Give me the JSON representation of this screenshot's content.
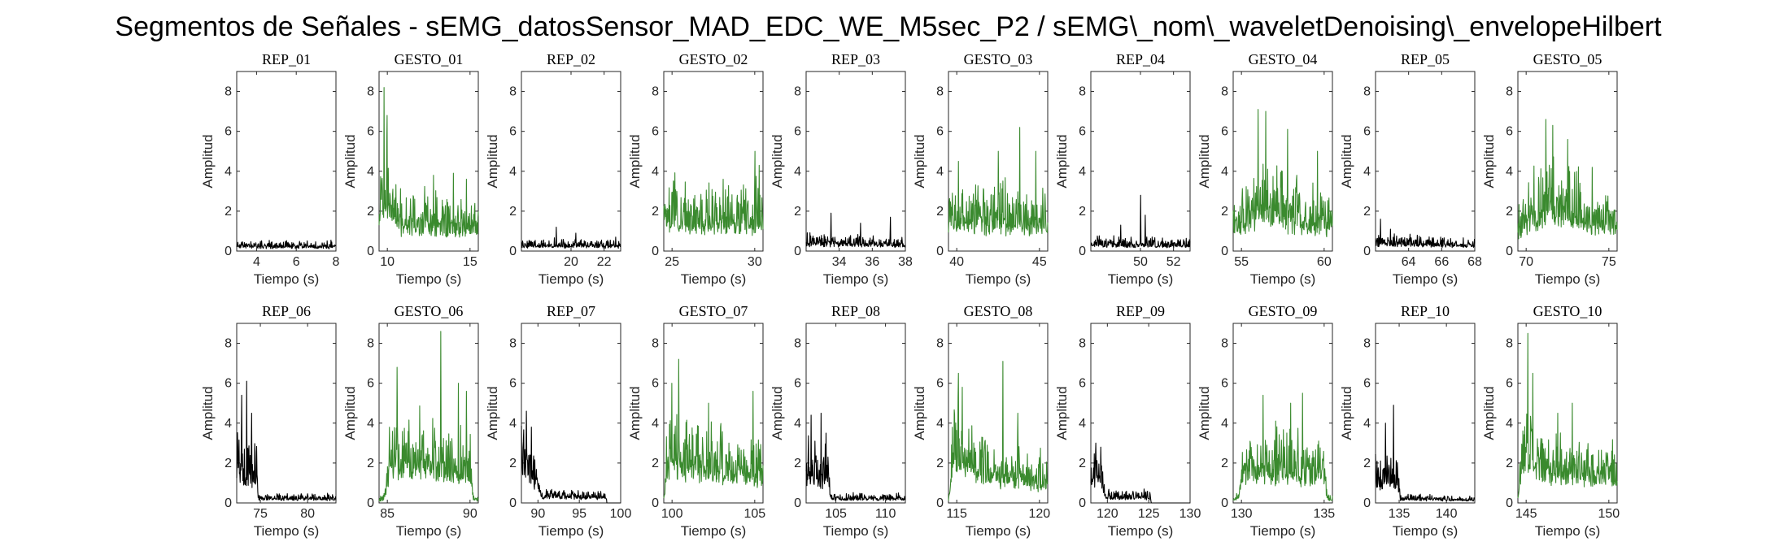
{
  "figure_title": "Segmentos de Señales - sEMG_datosSensor_MAD_EDC_WE_M5sec_P2 / sEMG\\_nom\\_waveletDenoising\\_envelopeHilbert",
  "colors": {
    "rep": "#000000",
    "gesto": "#3a8a2e"
  },
  "chart_data": [
    {
      "type": "line",
      "title": "REP_01",
      "xlabel": "Tiempo (s)",
      "ylabel": "Amplitud",
      "xlim": [
        3,
        8
      ],
      "ylim": [
        0,
        9
      ],
      "xticks": [
        4,
        6,
        8
      ],
      "yticks": [
        0,
        2,
        4,
        6,
        8
      ],
      "kind": "rep",
      "seed": 11,
      "profile": [
        [
          0,
          0.35
        ],
        [
          1,
          0.3
        ]
      ],
      "peaks": [
        [
          0.95,
          0.55
        ]
      ]
    },
    {
      "type": "line",
      "title": "GESTO_01",
      "xlabel": "Tiempo (s)",
      "ylabel": "Amplitud",
      "xlim": [
        9.5,
        15.5
      ],
      "ylim": [
        0,
        9
      ],
      "xticks": [
        10,
        15
      ],
      "yticks": [
        0,
        2,
        4,
        6,
        8
      ],
      "kind": "gesto",
      "seed": 12,
      "profile": [
        [
          0,
          2.5
        ],
        [
          0.08,
          3.8
        ],
        [
          0.2,
          2.0
        ],
        [
          1,
          1.5
        ]
      ],
      "peaks": [
        [
          0.05,
          8.2
        ],
        [
          0.08,
          6.8
        ],
        [
          0.55,
          3.8
        ],
        [
          0.75,
          3.9
        ],
        [
          0.88,
          3.6
        ]
      ]
    },
    {
      "type": "line",
      "title": "REP_02",
      "xlabel": "Tiempo (s)",
      "ylabel": "Amplitud",
      "xlim": [
        17,
        23
      ],
      "ylim": [
        0,
        9
      ],
      "xticks": [
        20,
        22
      ],
      "yticks": [
        0,
        2,
        4,
        6,
        8
      ],
      "kind": "rep",
      "seed": 13,
      "profile": [
        [
          0,
          0.4
        ],
        [
          1,
          0.35
        ]
      ],
      "peaks": [
        [
          0.35,
          1.2
        ],
        [
          0.55,
          0.9
        ],
        [
          0.95,
          0.7
        ]
      ]
    },
    {
      "type": "line",
      "title": "GESTO_02",
      "xlabel": "Tiempo (s)",
      "ylabel": "Amplitud",
      "xlim": [
        24.5,
        30.5
      ],
      "ylim": [
        0,
        9
      ],
      "xticks": [
        25,
        30
      ],
      "yticks": [
        0,
        2,
        4,
        6,
        8
      ],
      "kind": "gesto",
      "seed": 14,
      "profile": [
        [
          0,
          2.5
        ],
        [
          0.3,
          2.0
        ],
        [
          1,
          2.2
        ]
      ],
      "peaks": [
        [
          0.1,
          3.5
        ],
        [
          0.6,
          3.6
        ],
        [
          0.92,
          5.0
        ],
        [
          0.96,
          4.3
        ]
      ]
    },
    {
      "type": "line",
      "title": "REP_03",
      "xlabel": "Tiempo (s)",
      "ylabel": "Amplitud",
      "xlim": [
        32,
        38
      ],
      "ylim": [
        0,
        9
      ],
      "xticks": [
        34,
        36,
        38
      ],
      "yticks": [
        0,
        2,
        4,
        6,
        8
      ],
      "kind": "rep",
      "seed": 15,
      "profile": [
        [
          0,
          0.6
        ],
        [
          1,
          0.45
        ]
      ],
      "peaks": [
        [
          0.25,
          1.9
        ],
        [
          0.55,
          1.4
        ],
        [
          0.85,
          1.7
        ]
      ]
    },
    {
      "type": "line",
      "title": "GESTO_03",
      "xlabel": "Tiempo (s)",
      "ylabel": "Amplitud",
      "xlim": [
        39.5,
        45.5
      ],
      "ylim": [
        0,
        9
      ],
      "xticks": [
        40,
        45
      ],
      "yticks": [
        0,
        2,
        4,
        6,
        8
      ],
      "kind": "gesto",
      "seed": 16,
      "profile": [
        [
          0,
          2.2
        ],
        [
          1,
          2.0
        ]
      ],
      "peaks": [
        [
          0.1,
          4.5
        ],
        [
          0.5,
          5.0
        ],
        [
          0.72,
          6.2
        ],
        [
          0.88,
          5.0
        ]
      ]
    },
    {
      "type": "line",
      "title": "REP_04",
      "xlabel": "Tiempo (s)",
      "ylabel": "Amplitud",
      "xlim": [
        47,
        53
      ],
      "ylim": [
        0,
        9
      ],
      "xticks": [
        50,
        52
      ],
      "yticks": [
        0,
        2,
        4,
        6,
        8
      ],
      "kind": "rep",
      "seed": 17,
      "profile": [
        [
          0,
          0.5
        ],
        [
          1,
          0.4
        ]
      ],
      "peaks": [
        [
          0.3,
          1.3
        ],
        [
          0.5,
          2.8
        ],
        [
          0.55,
          1.8
        ]
      ]
    },
    {
      "type": "line",
      "title": "GESTO_04",
      "xlabel": "Tiempo (s)",
      "ylabel": "Amplitud",
      "xlim": [
        54.5,
        60.5
      ],
      "ylim": [
        0,
        9
      ],
      "xticks": [
        55,
        60
      ],
      "yticks": [
        0,
        2,
        4,
        6,
        8
      ],
      "kind": "gesto",
      "seed": 18,
      "profile": [
        [
          0,
          1.5
        ],
        [
          0.25,
          3.0
        ],
        [
          0.6,
          2.2
        ],
        [
          1,
          1.8
        ]
      ],
      "peaks": [
        [
          0.25,
          7.1
        ],
        [
          0.33,
          7.0
        ],
        [
          0.55,
          6.1
        ],
        [
          0.85,
          5.0
        ]
      ]
    },
    {
      "type": "line",
      "title": "REP_05",
      "xlabel": "Tiempo (s)",
      "ylabel": "Amplitud",
      "xlim": [
        62,
        68
      ],
      "ylim": [
        0,
        9
      ],
      "xticks": [
        64,
        66,
        68
      ],
      "yticks": [
        0,
        2,
        4,
        6,
        8
      ],
      "kind": "rep",
      "seed": 19,
      "profile": [
        [
          0,
          0.6
        ],
        [
          1,
          0.4
        ]
      ],
      "peaks": [
        [
          0.05,
          1.6
        ],
        [
          0.15,
          1.1
        ]
      ]
    },
    {
      "type": "line",
      "title": "GESTO_05",
      "xlabel": "Tiempo (s)",
      "ylabel": "Amplitud",
      "xlim": [
        69.5,
        75.5
      ],
      "ylim": [
        0,
        9
      ],
      "xticks": [
        70,
        75
      ],
      "yticks": [
        0,
        2,
        4,
        6,
        8
      ],
      "kind": "gesto",
      "seed": 20,
      "profile": [
        [
          0,
          1.5
        ],
        [
          0.3,
          3.2
        ],
        [
          0.7,
          2.2
        ],
        [
          1,
          1.8
        ]
      ],
      "peaks": [
        [
          0.28,
          6.6
        ],
        [
          0.35,
          6.3
        ],
        [
          0.5,
          5.6
        ],
        [
          0.75,
          4.2
        ]
      ]
    },
    {
      "type": "line",
      "title": "REP_06",
      "xlabel": "Tiempo (s)",
      "ylabel": "Amplitud",
      "xlim": [
        72.5,
        83
      ],
      "ylim": [
        0,
        9
      ],
      "xticks": [
        75,
        80
      ],
      "yticks": [
        0,
        2,
        4,
        6,
        8
      ],
      "kind": "rep",
      "seed": 21,
      "profile": [
        [
          0,
          2.5
        ],
        [
          0.2,
          2.0
        ],
        [
          0.22,
          0.3
        ],
        [
          1,
          0.3
        ]
      ],
      "peaks": [
        [
          0.05,
          5.4
        ],
        [
          0.1,
          6.1
        ],
        [
          0.15,
          4.5
        ]
      ]
    },
    {
      "type": "line",
      "title": "GESTO_06",
      "xlabel": "Tiempo (s)",
      "ylabel": "Amplitud",
      "xlim": [
        84.5,
        90.5
      ],
      "ylim": [
        0,
        9
      ],
      "xticks": [
        85,
        90
      ],
      "yticks": [
        0,
        2,
        4,
        6,
        8
      ],
      "kind": "gesto",
      "seed": 22,
      "profile": [
        [
          0,
          0.2
        ],
        [
          0.05,
          0.3
        ],
        [
          0.12,
          3.0
        ],
        [
          0.6,
          2.5
        ],
        [
          0.92,
          2.0
        ],
        [
          0.95,
          0.3
        ],
        [
          1,
          0.2
        ]
      ],
      "peaks": [
        [
          0.18,
          6.8
        ],
        [
          0.62,
          8.6
        ],
        [
          0.8,
          6.0
        ],
        [
          0.88,
          5.6
        ]
      ]
    },
    {
      "type": "line",
      "title": "REP_07",
      "xlabel": "Tiempo (s)",
      "ylabel": "Amplitud",
      "xlim": [
        88,
        100
      ],
      "ylim": [
        0,
        9
      ],
      "xticks": [
        90,
        95,
        100
      ],
      "yticks": [
        0,
        2,
        4,
        6,
        8
      ],
      "kind": "rep",
      "seed": 23,
      "profile": [
        [
          0,
          2.5
        ],
        [
          0.16,
          1.5
        ],
        [
          0.2,
          0.5
        ],
        [
          0.85,
          0.4
        ],
        [
          0.86,
          0
        ],
        [
          1,
          0
        ]
      ],
      "peaks": [
        [
          0.05,
          4.6
        ],
        [
          0.1,
          3.8
        ]
      ]
    },
    {
      "type": "line",
      "title": "GESTO_07",
      "xlabel": "Tiempo (s)",
      "ylabel": "Amplitud",
      "xlim": [
        99.5,
        105.5
      ],
      "ylim": [
        0,
        9
      ],
      "xticks": [
        100,
        105
      ],
      "yticks": [
        0,
        2,
        4,
        6,
        8
      ],
      "kind": "gesto",
      "seed": 24,
      "profile": [
        [
          0,
          0.2
        ],
        [
          0.04,
          3.0
        ],
        [
          0.4,
          2.5
        ],
        [
          1,
          2.0
        ]
      ],
      "peaks": [
        [
          0.08,
          6.0
        ],
        [
          0.15,
          7.2
        ],
        [
          0.45,
          5.0
        ],
        [
          0.9,
          5.6
        ]
      ]
    },
    {
      "type": "line",
      "title": "REP_08",
      "xlabel": "Tiempo (s)",
      "ylabel": "Amplitud",
      "xlim": [
        102,
        112
      ],
      "ylim": [
        0,
        9
      ],
      "xticks": [
        105,
        110
      ],
      "yticks": [
        0,
        2,
        4,
        6,
        8
      ],
      "kind": "rep",
      "seed": 25,
      "profile": [
        [
          0,
          2.2
        ],
        [
          0.22,
          1.8
        ],
        [
          0.25,
          0.3
        ],
        [
          1,
          0.3
        ]
      ],
      "peaks": [
        [
          0.05,
          4.4
        ],
        [
          0.15,
          4.5
        ],
        [
          0.2,
          3.5
        ]
      ]
    },
    {
      "type": "line",
      "title": "GESTO_08",
      "xlabel": "Tiempo (s)",
      "ylabel": "Amplitud",
      "xlim": [
        114.5,
        120.5
      ],
      "ylim": [
        0,
        9
      ],
      "xticks": [
        115,
        120
      ],
      "yticks": [
        0,
        2,
        4,
        6,
        8
      ],
      "kind": "gesto",
      "seed": 26,
      "profile": [
        [
          0,
          0.2
        ],
        [
          0.06,
          3.8
        ],
        [
          0.4,
          2.0
        ],
        [
          1,
          1.5
        ]
      ],
      "peaks": [
        [
          0.1,
          6.5
        ],
        [
          0.14,
          5.8
        ],
        [
          0.55,
          7.1
        ],
        [
          0.7,
          4.5
        ]
      ]
    },
    {
      "type": "line",
      "title": "REP_09",
      "xlabel": "Tiempo (s)",
      "ylabel": "Amplitud",
      "xlim": [
        118,
        130
      ],
      "ylim": [
        0,
        9
      ],
      "xticks": [
        120,
        125,
        130
      ],
      "yticks": [
        0,
        2,
        4,
        6,
        8
      ],
      "kind": "rep",
      "seed": 27,
      "profile": [
        [
          0,
          2.0
        ],
        [
          0.12,
          1.5
        ],
        [
          0.15,
          0.4
        ],
        [
          0.6,
          0.4
        ],
        [
          0.61,
          0
        ],
        [
          1,
          0
        ]
      ],
      "peaks": [
        [
          0.05,
          3.0
        ],
        [
          0.1,
          2.8
        ]
      ]
    },
    {
      "type": "line",
      "title": "GESTO_09",
      "xlabel": "Tiempo (s)",
      "ylabel": "Amplitud",
      "xlim": [
        129.5,
        135.5
      ],
      "ylim": [
        0,
        9
      ],
      "xticks": [
        130,
        135
      ],
      "yticks": [
        0,
        2,
        4,
        6,
        8
      ],
      "kind": "gesto",
      "seed": 28,
      "profile": [
        [
          0,
          0.2
        ],
        [
          0.05,
          0.4
        ],
        [
          0.1,
          2.5
        ],
        [
          0.6,
          2.2
        ],
        [
          0.92,
          2.0
        ],
        [
          0.95,
          0.3
        ],
        [
          1,
          0.2
        ]
      ],
      "peaks": [
        [
          0.3,
          5.4
        ],
        [
          0.58,
          5.0
        ],
        [
          0.7,
          5.5
        ]
      ]
    },
    {
      "type": "line",
      "title": "REP_10",
      "xlabel": "Tiempo (s)",
      "ylabel": "Amplitud",
      "xlim": [
        132.5,
        143
      ],
      "ylim": [
        0,
        9
      ],
      "xticks": [
        135,
        140
      ],
      "yticks": [
        0,
        2,
        4,
        6,
        8
      ],
      "kind": "rep",
      "seed": 29,
      "profile": [
        [
          0,
          1.8
        ],
        [
          0.22,
          1.5
        ],
        [
          0.25,
          0.3
        ],
        [
          1,
          0.2
        ]
      ],
      "peaks": [
        [
          0.1,
          4.0
        ],
        [
          0.18,
          4.9
        ]
      ]
    },
    {
      "type": "line",
      "title": "GESTO_10",
      "xlabel": "Tiempo (s)",
      "ylabel": "Amplitud",
      "xlim": [
        144.5,
        150.5
      ],
      "ylim": [
        0,
        9
      ],
      "xticks": [
        145,
        150
      ],
      "yticks": [
        0,
        2,
        4,
        6,
        8
      ],
      "kind": "gesto",
      "seed": 30,
      "profile": [
        [
          0,
          0.3
        ],
        [
          0.05,
          3.0
        ],
        [
          0.4,
          2.2
        ],
        [
          1,
          1.8
        ]
      ],
      "peaks": [
        [
          0.1,
          8.5
        ],
        [
          0.15,
          6.5
        ],
        [
          0.4,
          4.5
        ],
        [
          0.55,
          5.0
        ]
      ]
    }
  ]
}
